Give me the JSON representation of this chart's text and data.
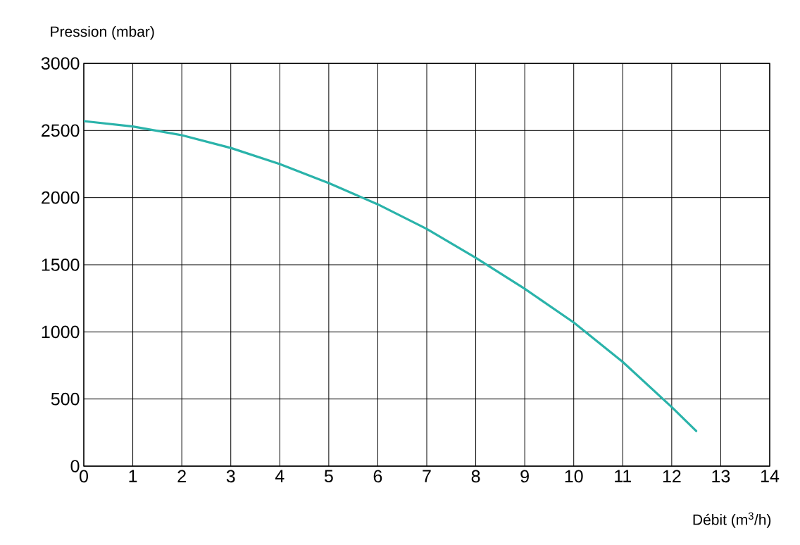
{
  "chart_data": {
    "type": "line",
    "xlabel": "Débit (m$^{3}$/h)",
    "ylabel": "Pression (mbar)",
    "x": [
      0,
      1,
      2,
      3,
      4,
      5,
      6,
      7,
      8,
      9,
      10,
      11,
      12,
      12.5
    ],
    "series": [
      {
        "color": "#2ab3aa",
        "values": [
          2570,
          2530,
          2465,
          2370,
          2250,
          2108,
          1950,
          1767,
          1552,
          1321,
          1070,
          776,
          440,
          262
        ]
      }
    ],
    "xlim": [
      0,
      14
    ],
    "ylim": [
      0,
      3000
    ],
    "xticks": [
      0,
      1,
      2,
      3,
      4,
      5,
      6,
      7,
      8,
      9,
      10,
      11,
      12,
      13,
      14
    ],
    "yticks": [
      0,
      500,
      1000,
      1500,
      2000,
      2500,
      3000
    ],
    "grid": true,
    "marker": "none",
    "line_style": "solid"
  }
}
